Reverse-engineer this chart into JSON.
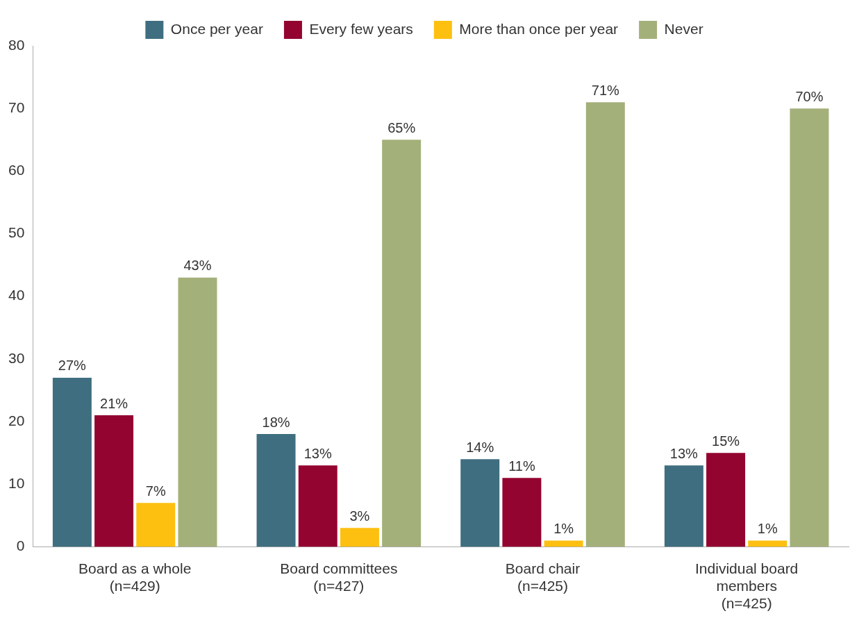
{
  "chart_data": {
    "type": "bar",
    "categories": [
      "Board as a whole\n(n=429)",
      "Board committees\n(n=427)",
      "Board chair\n(n=425)",
      "Individual board\nmembers\n(n=425)"
    ],
    "series": [
      {
        "name": "Once per year",
        "color": "#3f6e80",
        "values": [
          27,
          18,
          14,
          13
        ],
        "value_labels": [
          "27%",
          "18%",
          "14%",
          "13%"
        ]
      },
      {
        "name": "Every few years",
        "color": "#930530",
        "values": [
          21,
          13,
          11,
          15
        ],
        "value_labels": [
          "21%",
          "13%",
          "11%",
          "15%"
        ]
      },
      {
        "name": "More than once per year",
        "color": "#fdc010",
        "values": [
          7,
          3,
          1,
          1
        ],
        "value_labels": [
          "7%",
          "3%",
          "1%",
          "1%"
        ]
      },
      {
        "name": "Never",
        "color": "#a4b07a",
        "values": [
          43,
          65,
          71,
          70
        ],
        "value_labels": [
          "43%",
          "65%",
          "71%",
          "70%"
        ]
      }
    ],
    "ylim": [
      0,
      80
    ],
    "yticks": [
      0,
      10,
      20,
      30,
      40,
      50,
      60,
      70,
      80
    ],
    "grid": false,
    "legend": "top"
  }
}
